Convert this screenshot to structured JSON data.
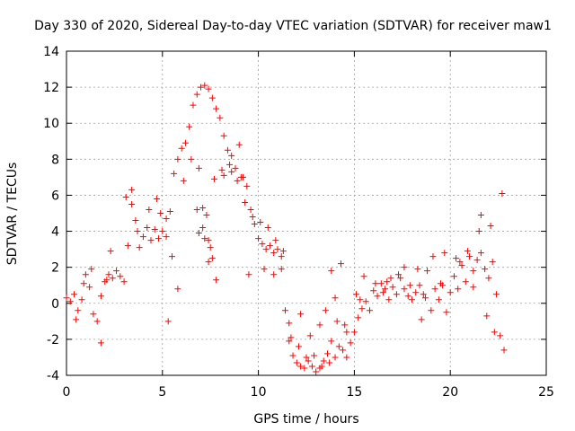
{
  "chart_data": {
    "type": "scatter",
    "title": "Day 330 of 2020, Sidereal Day-to-day VTEC variation (SDTVAR) for receiver maw1",
    "xlabel": "GPS time / hours",
    "ylabel": "SDTVAR / TECUs",
    "xlim": [
      0,
      25
    ],
    "ylim": [
      -4,
      14
    ],
    "xticks": [
      "0",
      "5",
      "10",
      "15",
      "20",
      "25"
    ],
    "yticks": [
      "-4",
      "-2",
      "0",
      "2",
      "4",
      "6",
      "8",
      "10",
      "12",
      "14"
    ],
    "grid": true,
    "marker": "plus",
    "series": [
      {
        "name": "SDTVAR",
        "color": "#ff0000",
        "x": [
          0.0,
          0.2,
          0.4,
          0.6,
          0.8,
          1.0,
          1.2,
          1.4,
          1.6,
          1.8,
          2.0,
          2.2,
          2.4,
          2.6,
          2.8,
          3.0,
          3.2,
          3.4,
          3.6,
          3.8,
          4.0,
          4.2,
          4.4,
          4.6,
          4.8,
          5.0,
          5.2,
          5.4,
          5.6,
          5.8,
          6.0,
          6.2,
          6.4,
          6.6,
          6.8,
          7.0,
          7.2,
          7.4,
          7.6,
          7.8,
          8.0,
          8.2,
          8.4,
          8.6,
          8.8,
          9.0,
          9.2,
          9.4,
          9.6,
          9.8,
          10.0,
          10.2,
          10.4,
          10.6,
          10.8,
          11.0,
          11.2,
          11.4,
          11.6,
          11.8,
          12.0,
          12.2,
          12.4,
          12.6,
          12.8,
          13.0,
          13.2,
          13.4,
          13.6,
          13.8,
          14.0,
          14.2,
          14.4,
          14.6,
          14.8,
          15.0,
          15.2,
          15.4,
          15.6,
          15.8,
          16.0,
          16.2,
          16.4,
          16.6,
          16.8,
          17.0,
          17.2,
          17.4,
          17.6,
          17.8,
          18.0,
          18.2,
          18.4,
          18.6,
          18.8,
          19.0,
          19.2,
          19.4,
          19.6,
          19.8,
          20.0,
          20.2,
          20.4,
          20.6,
          20.8,
          21.0,
          21.2,
          21.4,
          21.6,
          21.8,
          22.0,
          22.2,
          22.4,
          22.6,
          22.8,
          0.5,
          0.9,
          1.3,
          1.8,
          2.3,
          3.1,
          3.4,
          3.7,
          4.3,
          4.7,
          5.2,
          5.5,
          5.8,
          6.1,
          6.5,
          6.9,
          7.1,
          7.3,
          7.5,
          7.7,
          8.1,
          8.5,
          8.9,
          9.3,
          9.7,
          10.1,
          10.5,
          10.9,
          11.3,
          11.7,
          12.1,
          12.5,
          12.9,
          13.3,
          13.7,
          14.1,
          14.3,
          14.6,
          15.1,
          15.5,
          16.1,
          16.7,
          17.3,
          17.9,
          18.5,
          19.1,
          19.7,
          20.3,
          20.9,
          21.5,
          21.9,
          22.3,
          22.7,
          6.8,
          7.1,
          7.4,
          7.8,
          8.2,
          8.6,
          9.1,
          9.5,
          10.3,
          10.8,
          11.2,
          11.6,
          12.2,
          12.7,
          13.2,
          13.8,
          14.5,
          15.3,
          16.5,
          17.6,
          18.7,
          19.5,
          20.5,
          21.2,
          22.1,
          6.9,
          7.2,
          7.4,
          7.6,
          2.1,
          4.9,
          5.3,
          13.5,
          14.0,
          21.6,
          18.3,
          16.9
        ],
        "y": [
          0.3,
          0.1,
          0.5,
          -0.4,
          0.2,
          1.6,
          0.9,
          -0.6,
          -1.0,
          0.4,
          1.2,
          1.6,
          1.4,
          1.8,
          1.5,
          1.2,
          3.2,
          5.5,
          4.6,
          3.1,
          3.7,
          4.2,
          3.5,
          4.1,
          3.6,
          4.0,
          3.7,
          5.1,
          7.2,
          8.0,
          8.6,
          8.9,
          9.8,
          11.0,
          11.6,
          12.0,
          12.1,
          11.9,
          11.4,
          10.8,
          10.3,
          9.3,
          8.5,
          8.2,
          7.5,
          8.8,
          7.0,
          6.5,
          5.2,
          4.4,
          3.6,
          3.3,
          3.0,
          3.2,
          2.8,
          3.0,
          2.6,
          -0.4,
          -2.1,
          -2.9,
          -3.3,
          -3.5,
          -3.6,
          -3.2,
          -3.5,
          -3.8,
          -3.6,
          -3.2,
          -2.8,
          -2.1,
          -3.0,
          -2.4,
          -2.6,
          -3.0,
          -2.2,
          -1.6,
          -0.8,
          -0.3,
          0.1,
          -0.4,
          0.7,
          0.4,
          1.1,
          0.8,
          0.2,
          0.9,
          0.5,
          1.4,
          0.8,
          0.4,
          0.2,
          0.6,
          1.0,
          0.5,
          1.8,
          -0.4,
          0.8,
          0.2,
          1.0,
          -0.5,
          0.6,
          1.5,
          0.8,
          2.1,
          1.2,
          2.6,
          1.8,
          2.4,
          2.8,
          1.9,
          1.4,
          2.3,
          0.5,
          -1.8,
          -2.6,
          -0.9,
          1.1,
          1.9,
          -2.2,
          2.9,
          5.9,
          6.3,
          4.0,
          5.2,
          5.8,
          4.7,
          2.6,
          0.8,
          6.8,
          8.0,
          7.5,
          5.3,
          4.9,
          3.1,
          6.9,
          7.4,
          7.7,
          6.8,
          5.6,
          4.8,
          4.5,
          4.2,
          3.5,
          2.9,
          -1.9,
          -2.4,
          -3.0,
          -2.9,
          -3.5,
          -3.3,
          -1.0,
          2.2,
          -1.6,
          0.5,
          1.5,
          1.1,
          1.2,
          1.6,
          1.0,
          -0.9,
          2.6,
          2.8,
          2.5,
          2.9,
          4.0,
          -0.7,
          -1.6,
          6.1,
          5.2,
          4.2,
          3.5,
          1.3,
          7.1,
          7.3,
          7.0,
          1.6,
          1.9,
          1.6,
          1.9,
          -1.1,
          -0.6,
          -1.8,
          -1.2,
          1.8,
          -1.2,
          0.2,
          0.6,
          2.0,
          0.3,
          1.1,
          2.3,
          0.9,
          4.3,
          3.9,
          3.6,
          2.3,
          2.5,
          1.3,
          5.0,
          -1.0,
          -0.4,
          0.3,
          4.9,
          1.9,
          1.4
        ]
      }
    ]
  }
}
